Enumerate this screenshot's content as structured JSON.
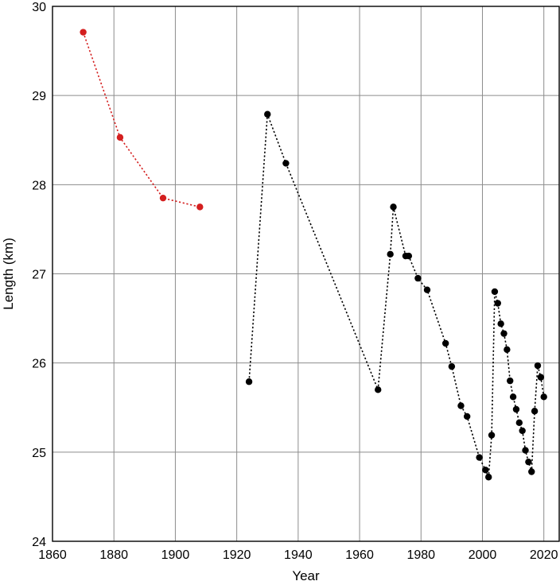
{
  "chart_data": {
    "type": "scatter",
    "title": "",
    "xlabel": "Year",
    "ylabel": "Length (km)",
    "xlim": [
      1860,
      2025
    ],
    "ylim": [
      24,
      30
    ],
    "grid": true,
    "xticks": [
      1860,
      1880,
      1900,
      1920,
      1940,
      1960,
      1980,
      2000,
      2020
    ],
    "yticks": [
      24,
      25,
      26,
      27,
      28,
      29,
      30
    ],
    "series": [
      {
        "color": "#d41f1f",
        "line_style": "dotted",
        "x": [
          1870,
          1882,
          1896,
          1908
        ],
        "y": [
          29.71,
          28.53,
          27.85,
          27.75
        ]
      },
      {
        "color": "#000000",
        "line_style": "dotted",
        "x": [
          1924,
          1930,
          1936,
          1966,
          1970,
          1971,
          1975,
          1976,
          1979,
          1982,
          1988,
          1990,
          1993,
          1995,
          1999,
          2001,
          2002,
          2003,
          2004,
          2005,
          2006,
          2007,
          2008,
          2009,
          2010,
          2011,
          2012,
          2013,
          2014,
          2015,
          2016,
          2017,
          2018,
          2019,
          2020
        ],
        "y": [
          25.79,
          28.79,
          28.24,
          25.7,
          27.22,
          27.75,
          27.2,
          27.2,
          26.95,
          26.82,
          26.22,
          25.96,
          25.52,
          25.4,
          24.94,
          24.8,
          24.72,
          25.19,
          26.8,
          26.67,
          26.44,
          26.33,
          26.15,
          25.8,
          25.62,
          25.48,
          25.33,
          25.24,
          25.02,
          24.89,
          24.78,
          25.46,
          25.97,
          25.84,
          25.62
        ]
      }
    ]
  }
}
